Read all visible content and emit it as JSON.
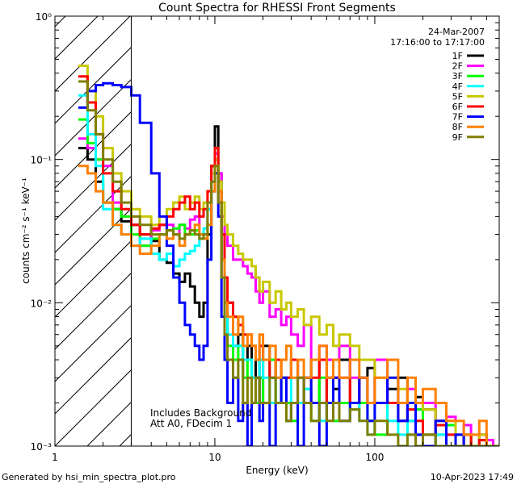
{
  "chart_data": {
    "type": "line",
    "title": "Count Spectra for RHESSI Front Segments",
    "xlabel": "Energy (keV)",
    "ylabel": "counts cm⁻² s⁻¹ keV⁻¹",
    "x_scale": "log",
    "y_scale": "log",
    "xlim": [
      1.0,
      600.0
    ],
    "ylim": [
      0.001,
      1.0
    ],
    "x_ticks": [
      {
        "value": 1,
        "label": "1"
      },
      {
        "value": 10,
        "label": "10"
      },
      {
        "value": 100,
        "label": "100"
      }
    ],
    "y_ticks": [
      {
        "value": 1,
        "label": "10⁰"
      },
      {
        "value": 0.1,
        "label": "10⁻¹"
      },
      {
        "value": 0.01,
        "label": "10⁻²"
      },
      {
        "value": 0.001,
        "label": "10⁻³"
      }
    ],
    "date": "24-Mar-2007",
    "time_range": "17:16:00 to 17:17:00",
    "annotations": [
      "Includes Background",
      "Att A0, FDecim 1"
    ],
    "shaded_region_max_energy_keV": 3.0,
    "footer_left": "Generated by hsi_min_spectra_plot.pro",
    "footer_right": "10-Apr-2023 17:49",
    "x": [
      1.4,
      1.6,
      1.8,
      2.0,
      2.3,
      2.6,
      3.0,
      3.4,
      4.0,
      4.5,
      5.0,
      5.5,
      6.0,
      6.5,
      7.0,
      7.5,
      8.0,
      8.5,
      9.0,
      9.5,
      10.0,
      10.5,
      11.0,
      11.5,
      12.0,
      13.0,
      14.0,
      15.0,
      16.0,
      17.0,
      18.0,
      19.0,
      20.0,
      22.0,
      24.0,
      26.0,
      28.0,
      30.0,
      33.0,
      36.0,
      40.0,
      45.0,
      50.0,
      55.0,
      60.0,
      70.0,
      80.0,
      90.0,
      100.0,
      120.0,
      140.0,
      160.0,
      180.0,
      200.0,
      240.0,
      280.0,
      320.0,
      360.0,
      400.0,
      450.0,
      500.0,
      550.0
    ],
    "series": [
      {
        "name": "1F",
        "color": "#000000",
        "values": [
          0.12,
          0.1,
          0.07,
          0.05,
          0.045,
          0.037,
          0.035,
          0.03,
          0.027,
          0.02,
          0.019,
          0.016,
          0.014,
          0.016,
          0.013,
          0.01,
          0.008,
          0.01,
          0.03,
          0.09,
          0.17,
          0.08,
          0.02,
          0.006,
          0.01,
          0.005,
          0.006,
          0.004,
          0.005,
          0.003,
          0.004,
          0.002,
          0.005,
          0.003,
          0.004,
          0.002,
          0.003,
          0.004,
          0.002,
          0.003,
          0.004,
          0.002,
          0.003,
          0.0025,
          0.004,
          0.002,
          0.003,
          0.0035,
          0.002,
          0.0025,
          0.003,
          0.0015,
          0.0022,
          0.0018,
          0.0012,
          0.0014,
          0.001,
          0.0012,
          0.001,
          0.0012,
          0.001,
          0.001
        ]
      },
      {
        "name": "2F",
        "color": "#ff00ff",
        "values": [
          0.14,
          0.12,
          0.1,
          0.09,
          0.05,
          0.04,
          0.035,
          0.025,
          0.032,
          0.035,
          0.035,
          0.03,
          0.035,
          0.033,
          0.038,
          0.04,
          0.03,
          0.028,
          0.045,
          0.07,
          0.11,
          0.08,
          0.04,
          0.03,
          0.025,
          0.02,
          0.02,
          0.018,
          0.016,
          0.015,
          0.012,
          0.01,
          0.012,
          0.008,
          0.009,
          0.007,
          0.008,
          0.006,
          0.005,
          0.007,
          0.004,
          0.005,
          0.004,
          0.003,
          0.005,
          0.003,
          0.003,
          0.002,
          0.004,
          0.002,
          0.002,
          0.0025,
          0.0018,
          0.002,
          0.0015,
          0.0016,
          0.0012,
          0.0014,
          0.001,
          0.0012,
          0.0011,
          0.001
        ]
      },
      {
        "name": "3F",
        "color": "#00ff00",
        "values": [
          0.19,
          0.13,
          0.1,
          0.05,
          0.045,
          0.04,
          0.03,
          0.025,
          0.028,
          0.03,
          0.032,
          0.033,
          0.035,
          0.03,
          0.03,
          0.032,
          0.03,
          0.028,
          0.035,
          0.06,
          0.1,
          0.07,
          0.02,
          0.008,
          0.005,
          0.004,
          0.005,
          0.003,
          0.004,
          0.003,
          0.002,
          0.003,
          0.002,
          0.004,
          0.002,
          0.003,
          0.002,
          0.0015,
          0.002,
          0.0025,
          0.0015,
          0.003,
          0.002,
          0.0015,
          0.002,
          0.0018,
          0.002,
          0.0015,
          0.0012,
          0.002,
          0.0015,
          0.0012,
          0.0018,
          0.0012,
          0.001,
          0.0014,
          0.001,
          0.0012,
          0.001,
          0.0011,
          0.001,
          0.001
        ]
      },
      {
        "name": "4F",
        "color": "#00ffff",
        "values": [
          0.28,
          0.15,
          0.09,
          0.045,
          0.035,
          0.03,
          0.025,
          0.028,
          0.022,
          0.02,
          0.022,
          0.018,
          0.02,
          0.022,
          0.023,
          0.025,
          0.03,
          0.033,
          0.045,
          0.07,
          0.12,
          0.06,
          0.02,
          0.008,
          0.006,
          0.005,
          0.005,
          0.004,
          0.004,
          0.003,
          0.003,
          0.004,
          0.003,
          0.002,
          0.003,
          0.002,
          0.003,
          0.002,
          0.002,
          0.0025,
          0.002,
          0.0015,
          0.002,
          0.002,
          0.0015,
          0.002,
          0.0015,
          0.0012,
          0.002,
          0.0015,
          0.0012,
          0.0015,
          0.0012,
          0.001,
          0.0012,
          0.001,
          0.0012,
          0.001,
          0.001,
          0.001,
          0.001,
          0.001
        ]
      },
      {
        "name": "5F",
        "color": "#c8c800",
        "values": [
          0.45,
          0.3,
          0.2,
          0.12,
          0.08,
          0.06,
          0.045,
          0.04,
          0.035,
          0.04,
          0.045,
          0.05,
          0.055,
          0.045,
          0.05,
          0.055,
          0.045,
          0.05,
          0.06,
          0.08,
          0.1,
          0.07,
          0.05,
          0.035,
          0.03,
          0.025,
          0.022,
          0.02,
          0.02,
          0.018,
          0.015,
          0.012,
          0.014,
          0.01,
          0.012,
          0.009,
          0.01,
          0.008,
          0.009,
          0.007,
          0.008,
          0.006,
          0.007,
          0.005,
          0.006,
          0.005,
          0.004,
          0.004,
          0.003,
          0.003,
          0.0025,
          0.002,
          0.002,
          0.0018,
          0.0015,
          0.0015,
          0.0012,
          0.0012,
          0.001,
          0.0012,
          0.001,
          0.001
        ]
      },
      {
        "name": "6F",
        "color": "#ff0000",
        "values": [
          0.38,
          0.25,
          0.15,
          0.08,
          0.06,
          0.045,
          0.035,
          0.03,
          0.033,
          0.035,
          0.04,
          0.045,
          0.05,
          0.055,
          0.045,
          0.05,
          0.04,
          0.045,
          0.06,
          0.09,
          0.12,
          0.06,
          0.03,
          0.015,
          0.01,
          0.008,
          0.007,
          0.006,
          0.006,
          0.005,
          0.004,
          0.005,
          0.004,
          0.003,
          0.004,
          0.003,
          0.003,
          0.004,
          0.003,
          0.002,
          0.003,
          0.004,
          0.002,
          0.003,
          0.003,
          0.002,
          0.003,
          0.002,
          0.002,
          0.002,
          0.0015,
          0.0018,
          0.0015,
          0.0012,
          0.0014,
          0.0012,
          0.001,
          0.0012,
          0.001,
          0.0011,
          0.001,
          0.001
        ]
      },
      {
        "name": "7F",
        "color": "#0000ff",
        "values": [
          0.23,
          0.3,
          0.33,
          0.34,
          0.33,
          0.32,
          0.28,
          0.18,
          0.08,
          0.04,
          0.025,
          0.015,
          0.01,
          0.007,
          0.006,
          0.005,
          0.004,
          0.005,
          0.02,
          0.06,
          0.08,
          0.04,
          0.008,
          0.004,
          0.002,
          0.003,
          0.0015,
          0.002,
          0.001,
          0.002,
          0.003,
          0.0015,
          0.002,
          0.001,
          0.002,
          0.003,
          0.0015,
          0.002,
          0.001,
          0.003,
          0.002,
          0.001,
          0.002,
          0.003,
          0.0015,
          0.002,
          0.003,
          0.0015,
          0.002,
          0.003,
          0.0015,
          0.002,
          0.0012,
          0.001,
          0.0015,
          0.001,
          0.0012,
          0.001,
          0.001,
          0.001,
          0.001,
          0.001
        ]
      },
      {
        "name": "8F",
        "color": "#ff8000",
        "values": [
          0.09,
          0.08,
          0.06,
          0.05,
          0.035,
          0.03,
          0.025,
          0.022,
          0.025,
          0.03,
          0.028,
          0.03,
          0.025,
          0.03,
          0.032,
          0.035,
          0.03,
          0.028,
          0.035,
          0.06,
          0.09,
          0.06,
          0.02,
          0.01,
          0.008,
          0.006,
          0.008,
          0.005,
          0.006,
          0.005,
          0.004,
          0.006,
          0.004,
          0.005,
          0.003,
          0.004,
          0.005,
          0.003,
          0.004,
          0.003,
          0.004,
          0.005,
          0.003,
          0.004,
          0.003,
          0.004,
          0.003,
          0.002,
          0.003,
          0.004,
          0.002,
          0.003,
          0.002,
          0.0025,
          0.002,
          0.0015,
          0.0015,
          0.0012,
          0.0012,
          0.0015,
          0.001,
          0.001
        ]
      },
      {
        "name": "9F",
        "color": "#7f7f00",
        "values": [
          0.35,
          0.22,
          0.15,
          0.1,
          0.07,
          0.05,
          0.04,
          0.035,
          0.03,
          0.03,
          0.032,
          0.03,
          0.028,
          0.03,
          0.032,
          0.03,
          0.028,
          0.03,
          0.05,
          0.07,
          0.09,
          0.05,
          0.015,
          0.006,
          0.004,
          0.003,
          0.004,
          0.002,
          0.003,
          0.002,
          0.003,
          0.002,
          0.002,
          0.003,
          0.002,
          0.002,
          0.0015,
          0.002,
          0.003,
          0.002,
          0.0015,
          0.002,
          0.0015,
          0.002,
          0.0015,
          0.0018,
          0.0015,
          0.0012,
          0.0015,
          0.0012,
          0.001,
          0.0012,
          0.001,
          0.0012,
          0.001,
          0.001,
          0.001,
          0.001,
          0.001,
          0.001,
          0.001,
          0.001
        ]
      }
    ]
  }
}
